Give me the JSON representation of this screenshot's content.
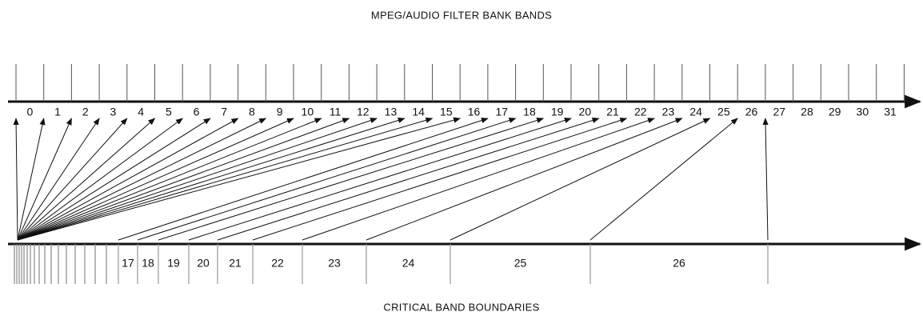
{
  "title": "MPEG/AUDIO FILTER BANK BANDS",
  "bottom_title": "CRITICAL BAND BOUNDARIES",
  "filter_bands": [
    "0",
    "1",
    "2",
    "3",
    "4",
    "5",
    "6",
    "7",
    "8",
    "9",
    "10",
    "11",
    "12",
    "13",
    "14",
    "15",
    "16",
    "17",
    "18",
    "19",
    "20",
    "21",
    "22",
    "23",
    "24",
    "25",
    "26",
    "27",
    "28",
    "29",
    "30",
    "31"
  ],
  "critical_bands": [
    "17",
    "18",
    "19",
    "20",
    "21",
    "22",
    "23",
    "24",
    "25",
    "26"
  ]
}
